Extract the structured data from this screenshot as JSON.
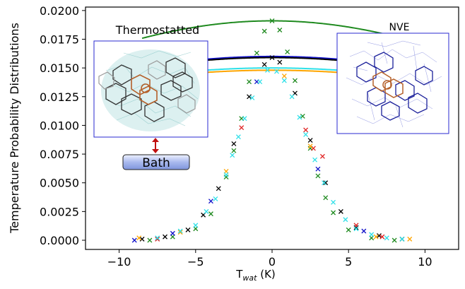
{
  "chart_data": {
    "type": "line",
    "xlabel_main": "T",
    "xlabel_sub": "wat",
    "xlabel_unit": " (K)",
    "ylabel": "Temperature Probability Distributions",
    "xlim": [
      -12.2,
      12.2
    ],
    "ylim": [
      -0.0008,
      0.0203
    ],
    "xticks": [
      -10,
      -5,
      0,
      5,
      10
    ],
    "xtick_labels": [
      "−10",
      "−5",
      "0",
      "5",
      "10"
    ],
    "yticks": [
      0.0,
      0.0025,
      0.005,
      0.0075,
      0.01,
      0.0125,
      0.015,
      0.0175,
      0.02
    ],
    "ytick_labels": [
      "0.0000",
      "0.0025",
      "0.0050",
      "0.0075",
      "0.0100",
      "0.0125",
      "0.0150",
      "0.0175",
      "0.0200"
    ],
    "grid": false,
    "legend": "none",
    "series": [
      {
        "color": "#1010c8",
        "mark": "line",
        "peak": 0.016,
        "x_min": -11.5,
        "x_max": 9.5
      },
      {
        "color": "#ffa500",
        "mark": "line",
        "peak": 0.0148,
        "x_min": -9.0,
        "x_max": 11.3
      },
      {
        "color": "#000000",
        "mark": "line",
        "peak": 0.0159,
        "x_min": -9.0,
        "x_max": 9.0
      },
      {
        "color": "#1f8a1f",
        "mark": "line",
        "peak": 0.0191,
        "x_min": -8.5,
        "x_max": 8.5
      },
      {
        "color": "#2ee0e8",
        "mark": "line",
        "peak": 0.015,
        "x_min": -10.0,
        "x_max": 9.5
      },
      {
        "color": "#1f8a1f",
        "mark": "x",
        "points": [
          [
            -8.0,
            0.0
          ],
          [
            -6.5,
            0.0003
          ],
          [
            -5.0,
            0.001
          ],
          [
            -4.0,
            0.0023
          ],
          [
            -3.0,
            0.0055
          ],
          [
            -2.5,
            0.0078
          ],
          [
            -2.0,
            0.0106
          ],
          [
            -1.5,
            0.0138
          ],
          [
            -1.0,
            0.0163
          ],
          [
            -0.5,
            0.0182
          ],
          [
            0.0,
            0.0191
          ],
          [
            0.5,
            0.0183
          ],
          [
            1.0,
            0.0164
          ],
          [
            1.5,
            0.0139
          ],
          [
            2.0,
            0.0108
          ],
          [
            2.5,
            0.008
          ],
          [
            3.0,
            0.0056
          ],
          [
            3.5,
            0.0037
          ],
          [
            4.0,
            0.0024
          ],
          [
            5.0,
            0.0009
          ],
          [
            6.5,
            0.0002
          ],
          [
            8.0,
            0.0
          ]
        ]
      },
      {
        "color": "#000000",
        "mark": "x",
        "points": [
          [
            -8.5,
            0.0001
          ],
          [
            -7.0,
            0.0003
          ],
          [
            -5.5,
            0.0009
          ],
          [
            -4.5,
            0.0022
          ],
          [
            -3.5,
            0.0045
          ],
          [
            -2.5,
            0.0084
          ],
          [
            -1.5,
            0.0125
          ],
          [
            -0.5,
            0.0153
          ],
          [
            0.0,
            0.0159
          ],
          [
            0.5,
            0.0155
          ],
          [
            1.5,
            0.0128
          ],
          [
            2.5,
            0.0087
          ],
          [
            3.5,
            0.005
          ],
          [
            4.5,
            0.0025
          ],
          [
            5.5,
            0.0011
          ],
          [
            7.0,
            0.0004
          ],
          [
            8.5,
            0.0001
          ]
        ]
      },
      {
        "color": "#e02020",
        "mark": "x",
        "points": [
          [
            -7.5,
            0.0001
          ],
          [
            -2.0,
            0.0098
          ],
          [
            2.2,
            0.0096
          ],
          [
            2.7,
            0.008
          ],
          [
            3.3,
            0.0073
          ],
          [
            5.5,
            0.0013
          ],
          [
            7.2,
            0.0003
          ]
        ]
      },
      {
        "color": "#1010c8",
        "mark": "x",
        "points": [
          [
            -9.0,
            0.0
          ],
          [
            -6.5,
            0.0006
          ],
          [
            -4.0,
            0.0034
          ],
          [
            -1.0,
            0.0138
          ],
          [
            3.0,
            0.0062
          ],
          [
            6.0,
            0.0008
          ]
        ]
      },
      {
        "color": "#ffa500",
        "mark": "x",
        "points": [
          [
            -8.7,
            0.0002
          ],
          [
            -6.0,
            0.0007
          ],
          [
            -3.0,
            0.006
          ],
          [
            0.8,
            0.0143
          ],
          [
            2.5,
            0.0082
          ],
          [
            6.8,
            0.0003
          ],
          [
            9.0,
            0.0001
          ]
        ]
      },
      {
        "color": "#2ee0e8",
        "mark": "x",
        "points": [
          [
            -7.5,
            0.0002
          ],
          [
            -6.0,
            0.0008
          ],
          [
            -5.0,
            0.0013
          ],
          [
            -4.3,
            0.0025
          ],
          [
            -3.7,
            0.0036
          ],
          [
            -3.0,
            0.0057
          ],
          [
            -2.6,
            0.0074
          ],
          [
            -2.2,
            0.009
          ],
          [
            -1.8,
            0.0106
          ],
          [
            -1.3,
            0.0124
          ],
          [
            -0.8,
            0.0138
          ],
          [
            -0.3,
            0.0148
          ],
          [
            0.3,
            0.0147
          ],
          [
            0.8,
            0.0139
          ],
          [
            1.3,
            0.0125
          ],
          [
            1.8,
            0.0107
          ],
          [
            2.2,
            0.0092
          ],
          [
            2.8,
            0.007
          ],
          [
            3.4,
            0.005
          ],
          [
            4.0,
            0.0033
          ],
          [
            4.8,
            0.0018
          ],
          [
            5.5,
            0.001
          ],
          [
            6.5,
            0.0005
          ],
          [
            7.5,
            0.0002
          ],
          [
            8.5,
            0.0001
          ]
        ]
      }
    ],
    "annotations": {
      "left_label": "Thermostatted",
      "right_label": "NVE",
      "bath_label": "Bath"
    }
  }
}
